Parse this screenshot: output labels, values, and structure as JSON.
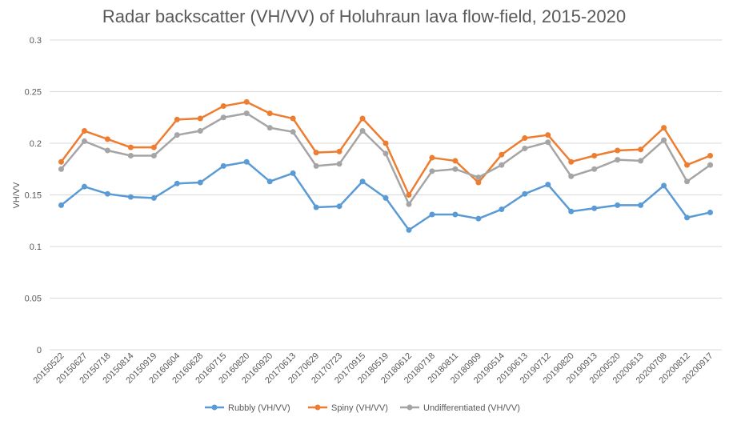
{
  "chart_data": {
    "type": "line",
    "title": "Radar backscatter (VH/VV) of Holuhraun lava flow-field, 2015-2020",
    "xlabel": "",
    "ylabel": "VH/VV",
    "ylim": [
      0,
      0.3
    ],
    "yticks": [
      0,
      0.05,
      0.1,
      0.15,
      0.2,
      0.25,
      0.3
    ],
    "ytick_labels": [
      "0",
      "0.05",
      "0.1",
      "0.15",
      "0.2",
      "0.25",
      "0.3"
    ],
    "grid": true,
    "legend_position": "bottom",
    "categories": [
      "20150522",
      "20150627",
      "20150718",
      "20150814",
      "20150919",
      "20160604",
      "20160628",
      "20160715",
      "20160820",
      "20160920",
      "20170613",
      "20170629",
      "20170723",
      "20170915",
      "20180519",
      "20180612",
      "20180718",
      "20180811",
      "20180909",
      "20190514",
      "20190613",
      "20190712",
      "20190820",
      "20190913",
      "20200520",
      "20200613",
      "20200708",
      "20200812",
      "20200917"
    ],
    "series": [
      {
        "name": "Rubbly (VH/VV)",
        "color": "#5B9BD5",
        "values": [
          0.14,
          0.158,
          0.151,
          0.148,
          0.147,
          0.161,
          0.162,
          0.178,
          0.182,
          0.163,
          0.171,
          0.138,
          0.139,
          0.163,
          0.147,
          0.116,
          0.131,
          0.131,
          0.127,
          0.136,
          0.151,
          0.16,
          0.134,
          0.137,
          0.14,
          0.14,
          0.159,
          0.128,
          0.133
        ]
      },
      {
        "name": "Spiny (VH/VV)",
        "color": "#ED7D31",
        "values": [
          0.182,
          0.212,
          0.204,
          0.196,
          0.196,
          0.223,
          0.224,
          0.236,
          0.24,
          0.229,
          0.224,
          0.191,
          0.192,
          0.224,
          0.2,
          0.15,
          0.186,
          0.183,
          0.162,
          0.189,
          0.205,
          0.208,
          0.182,
          0.188,
          0.193,
          0.194,
          0.215,
          0.179,
          0.188
        ]
      },
      {
        "name": "Undifferentiated (VH/VV)",
        "color": "#A5A5A5",
        "values": [
          0.175,
          0.202,
          0.193,
          0.188,
          0.188,
          0.208,
          0.212,
          0.225,
          0.229,
          0.215,
          0.211,
          0.178,
          0.18,
          0.212,
          0.19,
          0.141,
          0.173,
          0.175,
          0.167,
          0.179,
          0.195,
          0.201,
          0.168,
          0.175,
          0.184,
          0.183,
          0.203,
          0.163,
          0.179
        ]
      }
    ],
    "colors": {
      "grid": "#D9D9D9",
      "text": "#595959"
    }
  }
}
